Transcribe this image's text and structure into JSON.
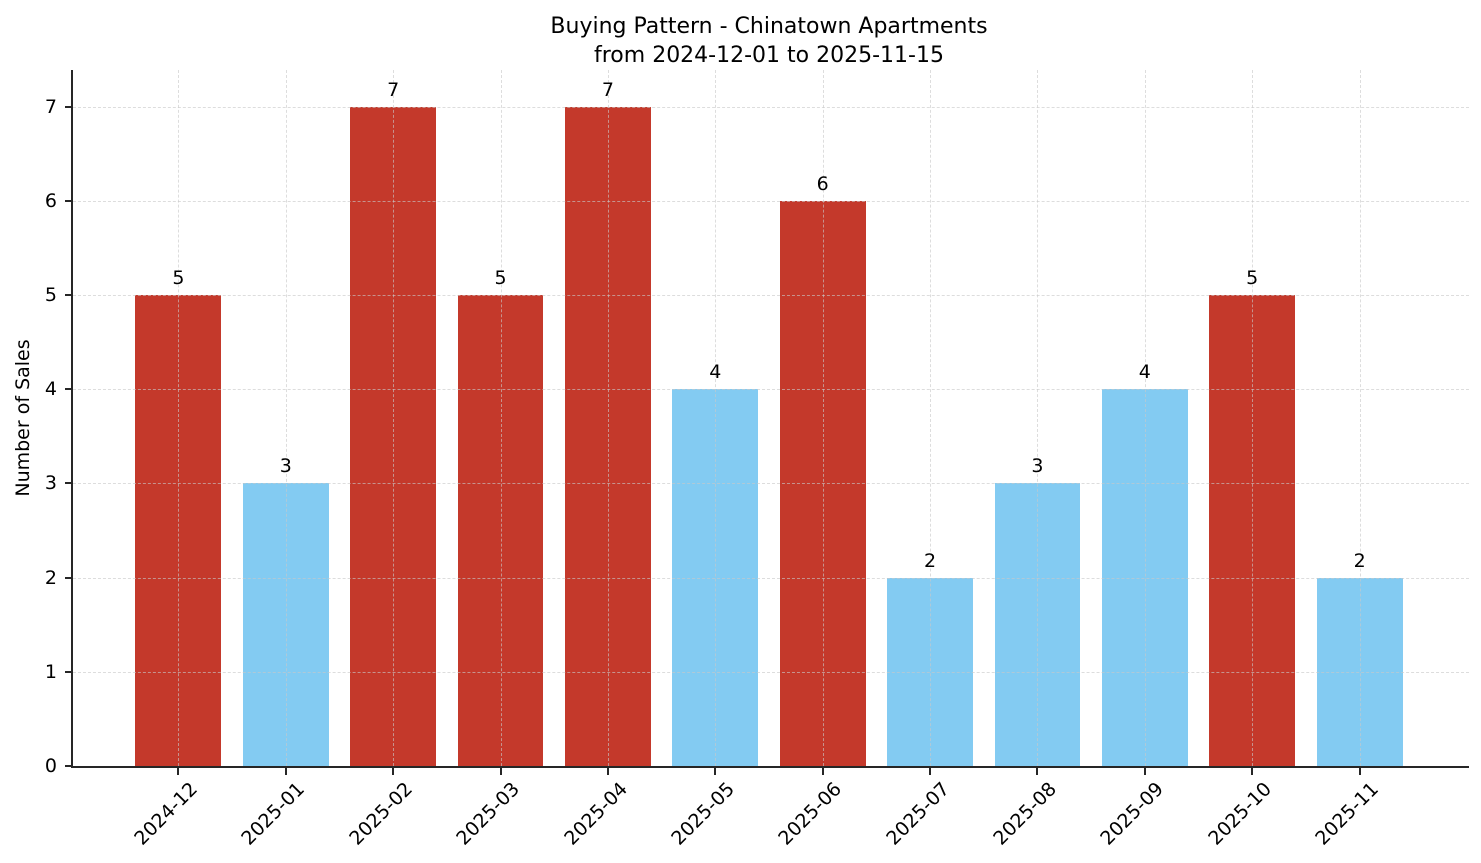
{
  "chart_data": {
    "type": "bar",
    "title": "Buying Pattern - Chinatown Apartments",
    "subtitle": "from 2024-12-01 to 2025-11-15",
    "xlabel": "",
    "ylabel": "Number of Sales",
    "categories": [
      "2024-12",
      "2025-01",
      "2025-02",
      "2025-03",
      "2025-04",
      "2025-05",
      "2025-06",
      "2025-07",
      "2025-08",
      "2025-09",
      "2025-10",
      "2025-11"
    ],
    "values": [
      5,
      3,
      7,
      5,
      7,
      4,
      6,
      2,
      3,
      4,
      5,
      2
    ],
    "value_labels": [
      "5",
      "3",
      "7",
      "5",
      "7",
      "4",
      "6",
      "2",
      "3",
      "4",
      "5",
      "2"
    ],
    "bar_colors": [
      "#c4392b",
      "#83cbf2",
      "#c4392b",
      "#c4392b",
      "#c4392b",
      "#83cbf2",
      "#c4392b",
      "#83cbf2",
      "#83cbf2",
      "#83cbf2",
      "#c4392b",
      "#83cbf2"
    ],
    "yticks": [
      "0",
      "1",
      "2",
      "3",
      "4",
      "5",
      "6",
      "7"
    ],
    "ylim": [
      0,
      7.39
    ],
    "bar_width_units": 0.8,
    "x_tick_rotation_deg": 45,
    "grid": "dashed",
    "legend": "none",
    "colors": {
      "high_sales_bar": "#c4392b",
      "low_sales_bar": "#83cbf2",
      "grid_line": "#c9c9c9",
      "axis_spine": "#262626",
      "background": "#ffffff"
    }
  }
}
